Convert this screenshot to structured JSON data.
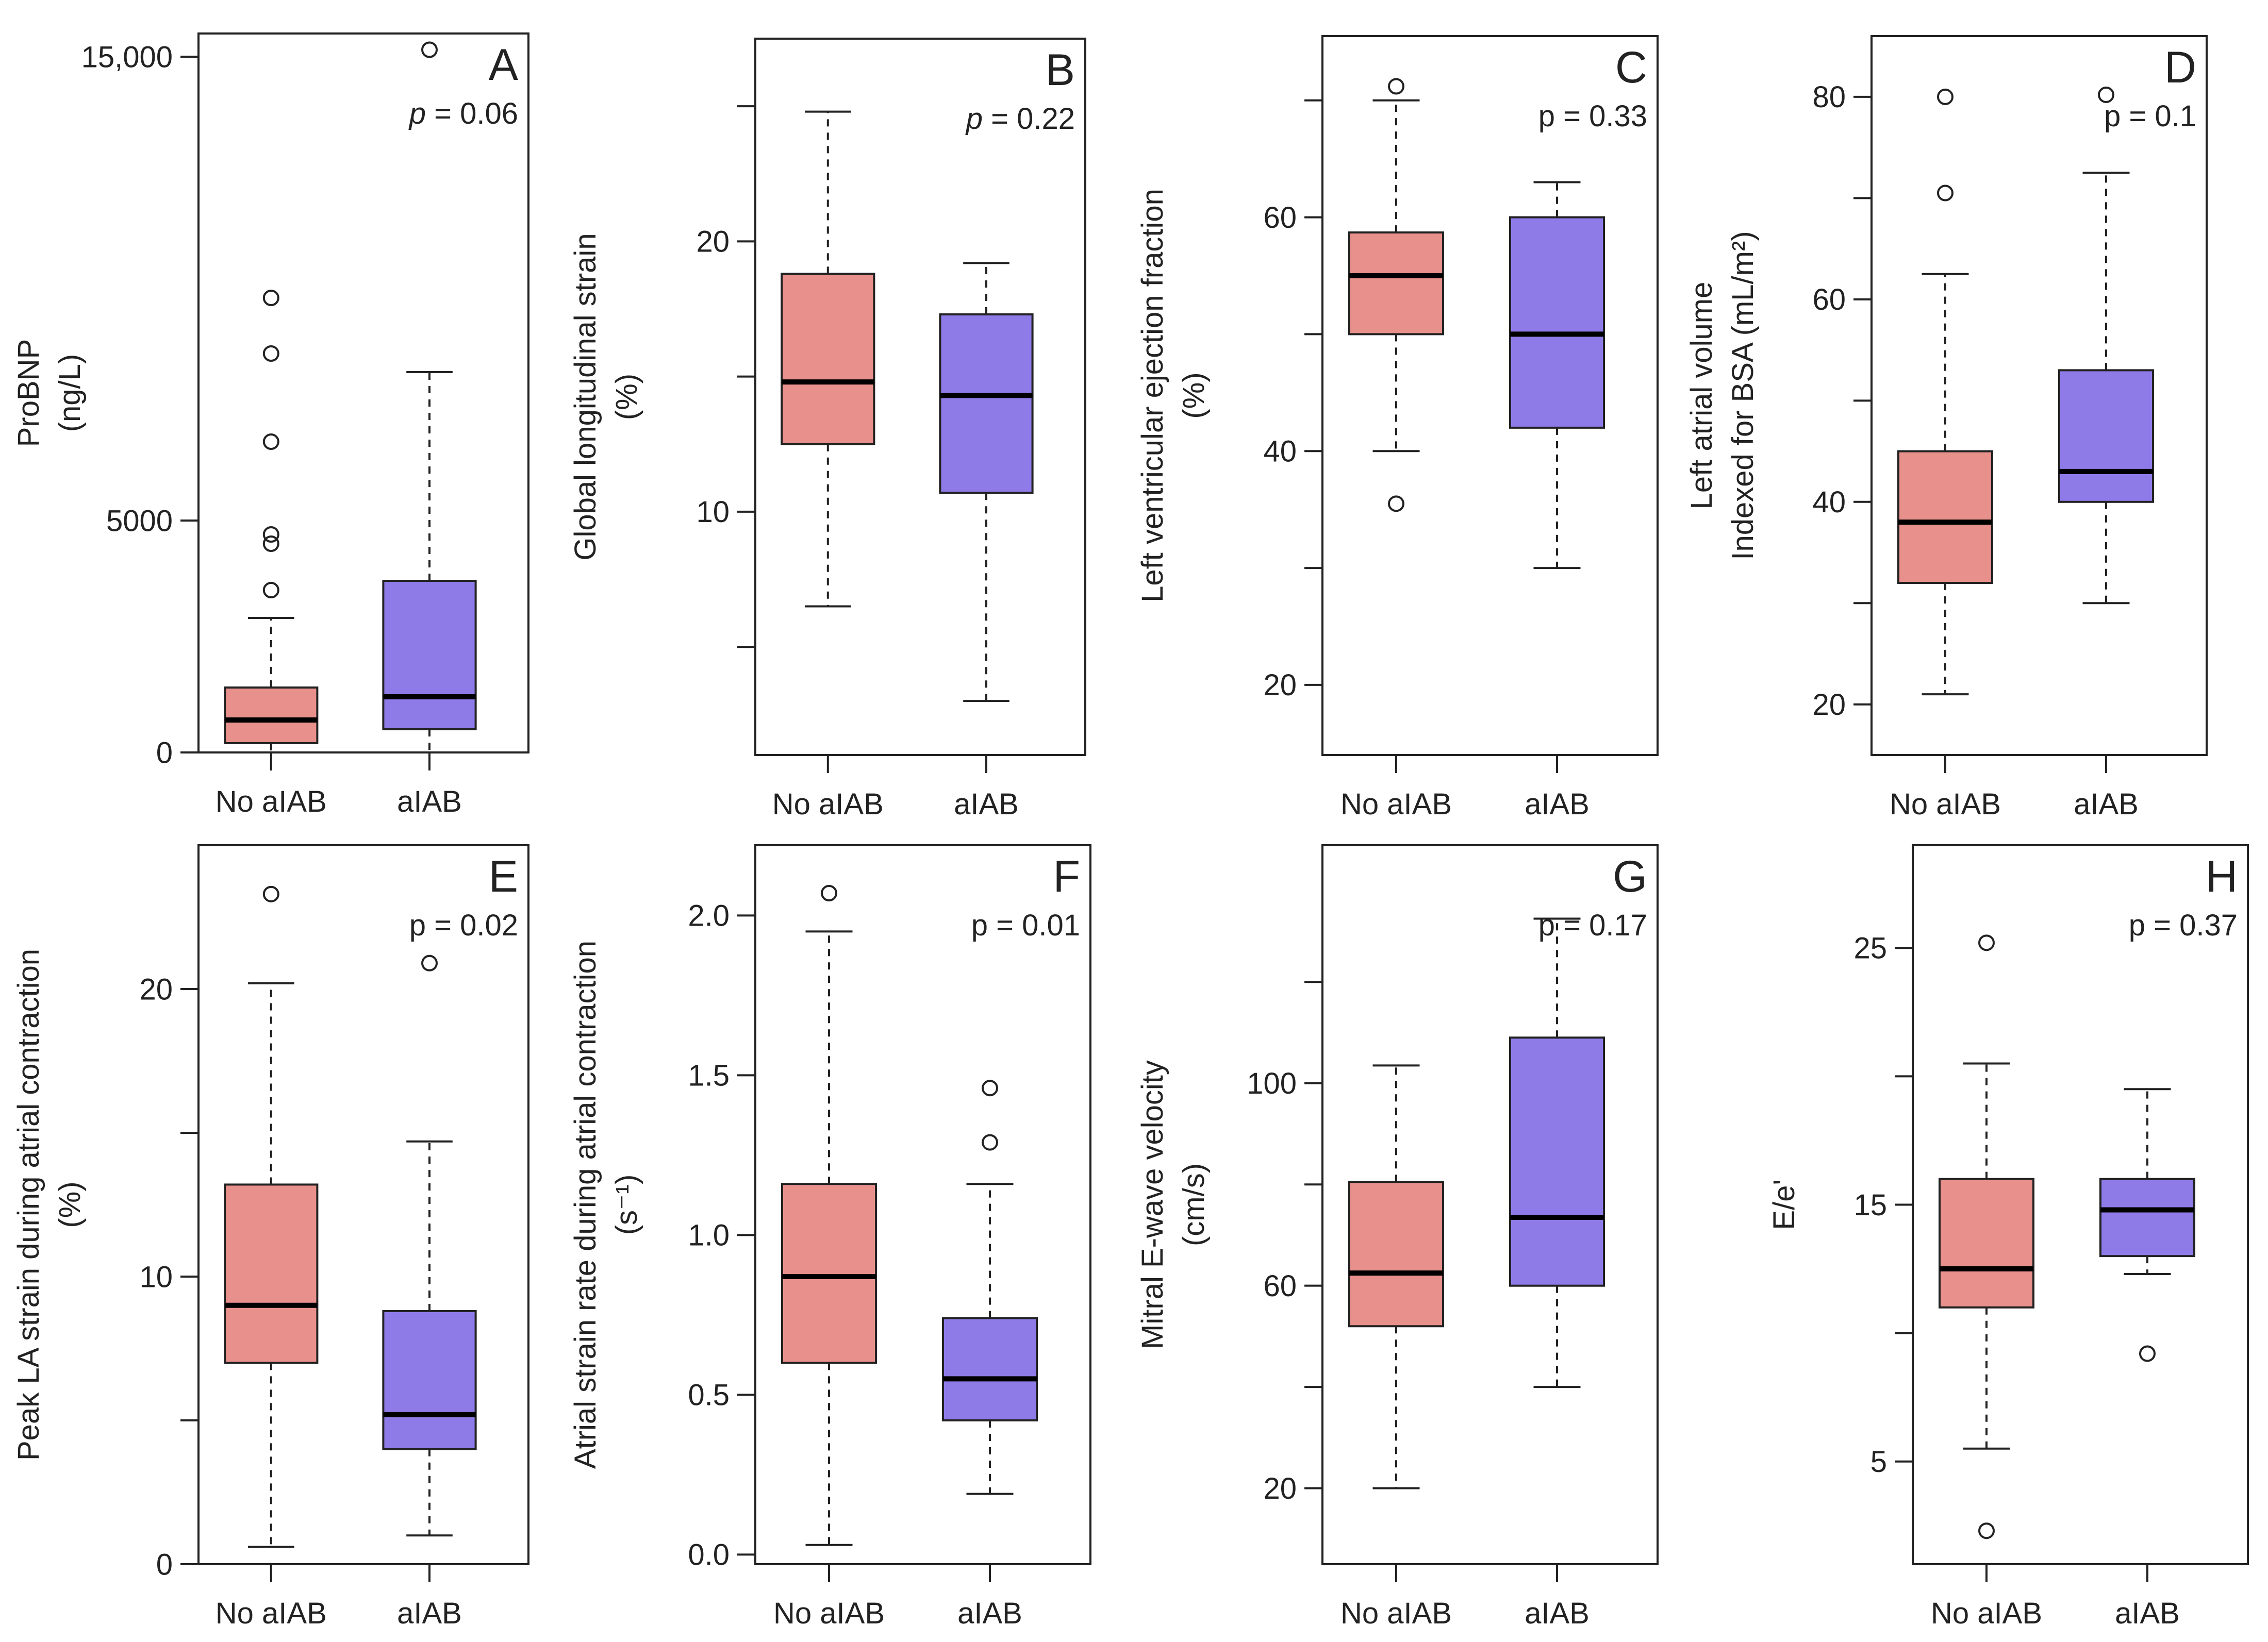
{
  "figure": {
    "colors": {
      "no_aiab": "#E8908C",
      "aiab": "#8F7BE8",
      "stroke": "#222222"
    },
    "group_labels": [
      "No aIAB",
      "aIAB"
    ]
  },
  "chart_data": [
    {
      "type": "boxplot",
      "letter": "A",
      "p_prefix": "p",
      "p_value": " = 0.06",
      "ylabel_lines": [
        "ProBNP",
        "(ng/L)"
      ],
      "ylim": [
        0,
        15500
      ],
      "ticks": [
        0,
        5000,
        15000
      ],
      "tick_labels": [
        "0",
        "5000",
        "15,000"
      ],
      "categories": [
        "No aIAB",
        "aIAB"
      ],
      "boxes": [
        {
          "name": "No aIAB",
          "whisker_low": 0,
          "q1": 200,
          "median": 700,
          "q3": 1400,
          "whisker_high": 2900,
          "outliers": [
            3500,
            4500,
            4700,
            6700,
            8600,
            9800
          ]
        },
        {
          "name": "aIAB",
          "whisker_low": 0,
          "q1": 500,
          "median": 1200,
          "q3": 3700,
          "whisker_high": 8200,
          "outliers": [
            15150
          ]
        }
      ]
    },
    {
      "type": "boxplot",
      "letter": "B",
      "p_prefix": "p",
      "p_value": " = 0.22",
      "ylabel_lines": [
        "Global longitudinal strain",
        "(%)"
      ],
      "ylim": [
        1,
        27.5
      ],
      "ticks": [
        5,
        10,
        15,
        20,
        25
      ],
      "tick_labels": [
        "",
        "10",
        "",
        "20",
        ""
      ],
      "categories": [
        "No aIAB",
        "aIAB"
      ],
      "boxes": [
        {
          "name": "No aIAB",
          "whisker_low": 6.5,
          "q1": 12.5,
          "median": 14.8,
          "q3": 18.8,
          "whisker_high": 24.8,
          "outliers": []
        },
        {
          "name": "aIAB",
          "whisker_low": 3,
          "q1": 10.7,
          "median": 14.3,
          "q3": 17.3,
          "whisker_high": 19.2,
          "outliers": []
        }
      ]
    },
    {
      "type": "boxplot",
      "letter": "C",
      "p_value": "p = 0.33",
      "ylabel_lines": [
        "Left ventricular ejection fraction",
        "(%)"
      ],
      "ylim": [
        14,
        75.5
      ],
      "ticks": [
        20,
        30,
        40,
        50,
        60,
        70
      ],
      "tick_labels": [
        "20",
        "",
        "40",
        "",
        "60",
        ""
      ],
      "categories": [
        "No aIAB",
        "aIAB"
      ],
      "boxes": [
        {
          "name": "No aIAB",
          "whisker_low": 40,
          "q1": 50,
          "median": 55,
          "q3": 58.7,
          "whisker_high": 70,
          "outliers": [
            35.5,
            71.2
          ]
        },
        {
          "name": "aIAB",
          "whisker_low": 30,
          "q1": 42,
          "median": 50,
          "q3": 60,
          "whisker_high": 63,
          "outliers": []
        }
      ]
    },
    {
      "type": "boxplot",
      "letter": "D",
      "p_value": "p = 0.1",
      "ylabel_lines": [
        "Left atrial volume",
        "Indexed for BSA (mL/m²)"
      ],
      "ylim": [
        15,
        86
      ],
      "ticks": [
        20,
        30,
        40,
        50,
        60,
        70,
        80
      ],
      "tick_labels": [
        "20",
        "",
        "40",
        "",
        "60",
        "",
        "80"
      ],
      "categories": [
        "No aIAB",
        "aIAB"
      ],
      "boxes": [
        {
          "name": "No aIAB",
          "whisker_low": 21,
          "q1": 32,
          "median": 38,
          "q3": 45,
          "whisker_high": 62.5,
          "outliers": [
            70.5,
            80
          ]
        },
        {
          "name": "aIAB",
          "whisker_low": 30,
          "q1": 40,
          "median": 43,
          "q3": 53,
          "whisker_high": 72.5,
          "outliers": [
            80.2
          ]
        }
      ]
    },
    {
      "type": "boxplot",
      "letter": "E",
      "p_value": "p = 0.02",
      "ylabel_lines": [
        "Peak LA strain during atrial contraction",
        "(%)"
      ],
      "ylim": [
        0,
        25
      ],
      "ticks": [
        0,
        5,
        10,
        15,
        20
      ],
      "tick_labels": [
        "0",
        "",
        "10",
        "",
        "20"
      ],
      "categories": [
        "No aIAB",
        "aIAB"
      ],
      "boxes": [
        {
          "name": "No aIAB",
          "whisker_low": 0.6,
          "q1": 7,
          "median": 9,
          "q3": 13.2,
          "whisker_high": 20.2,
          "outliers": [
            23.3
          ]
        },
        {
          "name": "aIAB",
          "whisker_low": 1,
          "q1": 4,
          "median": 5.2,
          "q3": 8.8,
          "whisker_high": 14.7,
          "outliers": [
            20.9
          ]
        }
      ]
    },
    {
      "type": "boxplot",
      "letter": "F",
      "p_value": "p = 0.01",
      "ylabel_lines": [
        "Atrial strain rate during atrial contraction",
        "(s⁻¹)"
      ],
      "ylim": [
        -0.03,
        2.22
      ],
      "ticks": [
        0,
        0.5,
        1,
        1.5,
        2
      ],
      "tick_labels": [
        "0.0",
        "0.5",
        "1.0",
        "1.5",
        "2.0"
      ],
      "categories": [
        "No aIAB",
        "aIAB"
      ],
      "boxes": [
        {
          "name": "No aIAB",
          "whisker_low": 0.03,
          "q1": 0.6,
          "median": 0.87,
          "q3": 1.16,
          "whisker_high": 1.95,
          "outliers": [
            2.07
          ]
        },
        {
          "name": "aIAB",
          "whisker_low": 0.19,
          "q1": 0.42,
          "median": 0.55,
          "q3": 0.74,
          "whisker_high": 1.16,
          "outliers": [
            1.29,
            1.46
          ]
        }
      ]
    },
    {
      "type": "boxplot",
      "letter": "G",
      "p_value": "p = 0.17",
      "ylabel_lines": [
        "Mitral E-wave velocity",
        "(cm/s)"
      ],
      "ylim": [
        5,
        147
      ],
      "ticks": [
        20,
        40,
        60,
        80,
        100,
        120
      ],
      "tick_labels": [
        "20",
        "",
        "60",
        "",
        "100",
        ""
      ],
      "categories": [
        "No aIAB",
        "aIAB"
      ],
      "boxes": [
        {
          "name": "No aIAB",
          "whisker_low": 20,
          "q1": 52,
          "median": 62.5,
          "q3": 80.5,
          "whisker_high": 103.5,
          "outliers": []
        },
        {
          "name": "aIAB",
          "whisker_low": 40,
          "q1": 60,
          "median": 73.5,
          "q3": 109,
          "whisker_high": 132.5,
          "outliers": []
        }
      ]
    },
    {
      "type": "boxplot",
      "letter": "H",
      "p_value": "p = 0.37",
      "ylabel_lines": [
        "E/e'"
      ],
      "ylim": [
        1,
        29
      ],
      "ticks": [
        5,
        10,
        15,
        20,
        25
      ],
      "tick_labels": [
        "5",
        "",
        "15",
        "",
        "25"
      ],
      "categories": [
        "No aIAB",
        "aIAB"
      ],
      "boxes": [
        {
          "name": "No aIAB",
          "whisker_low": 5.5,
          "q1": 11,
          "median": 12.5,
          "q3": 16,
          "whisker_high": 20.5,
          "outliers": [
            2.3,
            25.2
          ]
        },
        {
          "name": "aIAB",
          "whisker_low": 12.3,
          "q1": 13,
          "median": 14.8,
          "q3": 16,
          "whisker_high": 19.5,
          "outliers": [
            9.2
          ]
        }
      ]
    }
  ]
}
